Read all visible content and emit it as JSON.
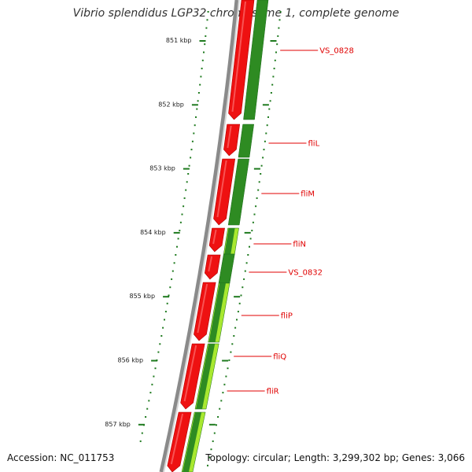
{
  "title": "Vibrio splendidus LGP32 chromosome 1, complete genome",
  "accession": "Accession: NC_011753",
  "summary": "Topology: circular; Length: 3,299,302 bp; Genes: 3,066",
  "colors": {
    "backbone": "#8a8a8a",
    "reverse_strand": "#ee1111",
    "forward_strand": "#2e8b22",
    "forward_light": "#a8e830",
    "tick": "#1e7a1e",
    "label": "#e00000"
  },
  "kbp_ticks": [
    "851 kbp",
    "852 kbp",
    "853 kbp",
    "854 kbp",
    "855 kbp",
    "856 kbp",
    "857 kbp"
  ],
  "genes": [
    {
      "label": "VS_0828"
    },
    {
      "label": "fliL"
    },
    {
      "label": "fliM"
    },
    {
      "label": "fliN"
    },
    {
      "label": "VS_0832"
    },
    {
      "label": "fliP"
    },
    {
      "label": "fliQ"
    },
    {
      "label": "fliR"
    }
  ]
}
